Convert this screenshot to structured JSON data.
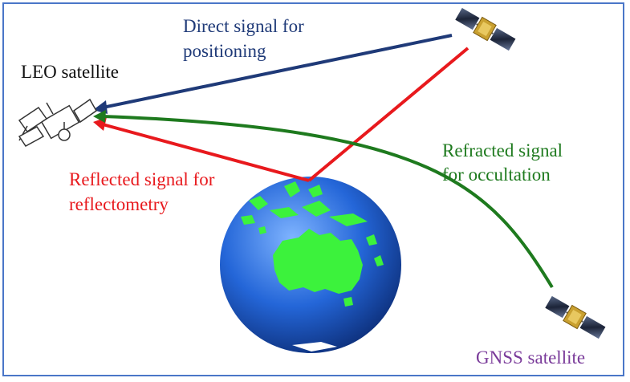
{
  "labels": {
    "leo": "LEO satellite",
    "direct_line1": "Direct signal for",
    "direct_line2": "positioning",
    "reflected_line1": "Reflected signal for",
    "reflected_line2": "reflectometry",
    "refracted_line1": "Refracted signal",
    "refracted_line2": "for occultation",
    "gnss": "GNSS satellite"
  },
  "colors": {
    "direct": "#1f3a78",
    "reflected": "#e8191d",
    "refracted": "#1e7a1e",
    "gnss_label": "#7a3b9a",
    "earth_ocean": "#1f5fd0",
    "earth_land": "#3cf23c",
    "frame": "#4a76c8"
  },
  "icons": {
    "leo": "leo-satellite-line-drawing",
    "gnss": "gnss-satellite-solar-panels",
    "earth": "earth-globe-australia"
  }
}
